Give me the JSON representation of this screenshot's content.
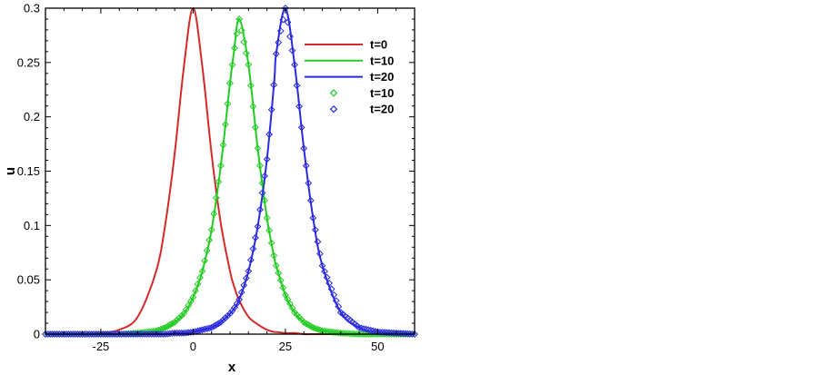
{
  "chart_data": {
    "type": "line",
    "xlabel": "x",
    "ylabel": "u",
    "xlim": [
      -40,
      60
    ],
    "ylim": [
      0,
      0.3
    ],
    "xticks": [
      -25,
      0,
      25,
      50
    ],
    "yticks": [
      0,
      0.05,
      0.1,
      0.15,
      0.2,
      0.25,
      0.3
    ],
    "ytick_labels": [
      "0",
      "0.05",
      "0.1",
      "0.15",
      "0.2",
      "0.25",
      "0.3"
    ],
    "grid": false,
    "legend_position": "top-right",
    "x": [
      -40,
      -35,
      -30,
      -25,
      -20,
      -15,
      -10,
      -7.5,
      -5,
      -2.5,
      0,
      2.5,
      5,
      7.5,
      10,
      11,
      12.5,
      15,
      17.5,
      20,
      22,
      22.5,
      25,
      27.5,
      30,
      32.5,
      35,
      40,
      45,
      50,
      55,
      60
    ],
    "series": [
      {
        "name": "t=0",
        "style": "line",
        "color": "#d42a2a",
        "values": [
          0.0,
          0.0,
          0.0,
          0.001,
          0.004,
          0.016,
          0.058,
          0.102,
          0.166,
          0.246,
          0.3,
          0.246,
          0.166,
          0.102,
          0.058,
          0.045,
          0.031,
          0.016,
          0.009,
          0.004,
          0.002,
          0.002,
          0.001,
          0.001,
          0.0,
          0.0,
          0.0,
          0.0,
          0.0,
          0.0,
          0.0,
          0.0
        ]
      },
      {
        "name": "t=10",
        "style": "line",
        "color": "#22cc22",
        "values": [
          0.0,
          0.0,
          0.0,
          0.0,
          0.0,
          0.001,
          0.003,
          0.006,
          0.011,
          0.019,
          0.034,
          0.058,
          0.096,
          0.155,
          0.231,
          0.258,
          0.29,
          0.248,
          0.171,
          0.107,
          0.07,
          0.063,
          0.036,
          0.02,
          0.011,
          0.006,
          0.003,
          0.001,
          0.0,
          0.0,
          0.0,
          0.0
        ]
      },
      {
        "name": "t=20",
        "style": "line",
        "color": "#2a2ae0",
        "values": [
          0.0,
          0.0,
          0.0,
          0.0,
          0.0,
          0.0,
          0.0,
          0.0,
          0.001,
          0.001,
          0.002,
          0.004,
          0.006,
          0.011,
          0.019,
          0.023,
          0.032,
          0.058,
          0.099,
          0.161,
          0.234,
          0.258,
          0.3,
          0.248,
          0.171,
          0.107,
          0.063,
          0.02,
          0.006,
          0.002,
          0.001,
          0.0
        ]
      },
      {
        "name": "t=10",
        "style": "markers",
        "marker": "diamond",
        "color": "#22cc22",
        "values": [
          0.0,
          0.0,
          0.0,
          0.0,
          0.0,
          0.001,
          0.003,
          0.006,
          0.011,
          0.019,
          0.034,
          0.058,
          0.096,
          0.155,
          0.231,
          0.258,
          0.29,
          0.248,
          0.171,
          0.107,
          0.07,
          0.063,
          0.036,
          0.02,
          0.011,
          0.006,
          0.003,
          0.001,
          0.0,
          0.0,
          0.0,
          0.0
        ]
      },
      {
        "name": "t=20",
        "style": "markers",
        "marker": "diamond",
        "color": "#2a2ae0",
        "values": [
          0.0,
          0.0,
          0.0,
          0.0,
          0.0,
          0.0,
          0.0,
          0.0,
          0.001,
          0.001,
          0.002,
          0.004,
          0.006,
          0.011,
          0.019,
          0.023,
          0.032,
          0.058,
          0.099,
          0.161,
          0.234,
          0.258,
          0.3,
          0.248,
          0.171,
          0.107,
          0.063,
          0.02,
          0.006,
          0.002,
          0.001,
          0.0
        ]
      }
    ]
  }
}
